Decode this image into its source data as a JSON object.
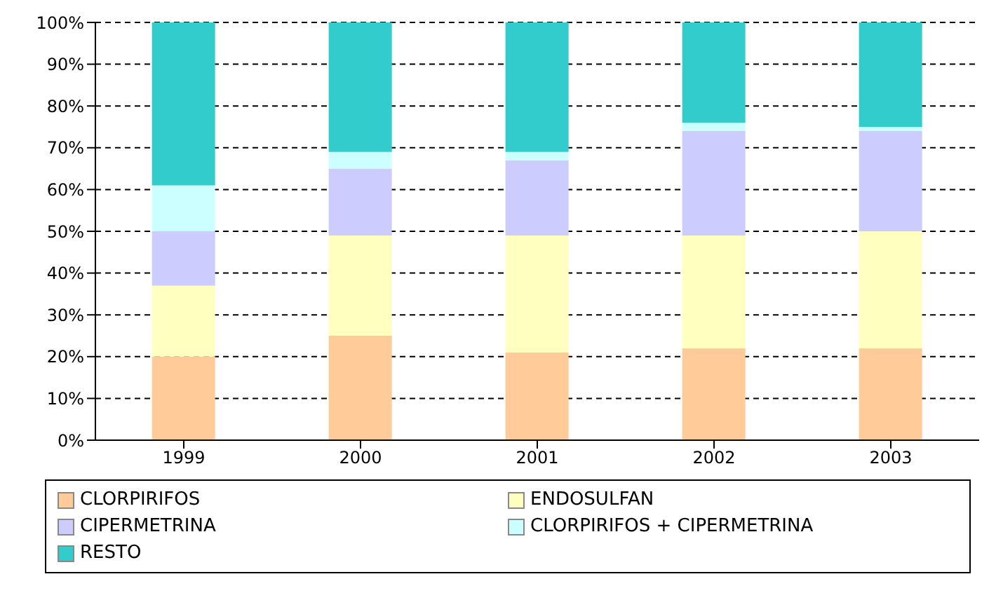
{
  "chart_data": {
    "type": "bar",
    "stacked": true,
    "categories": [
      "1999",
      "2000",
      "2001",
      "2002",
      "2003"
    ],
    "series": [
      {
        "name": "CLORPIRIFOS",
        "color": "#ffcc99",
        "values": [
          20,
          25,
          21,
          22,
          22
        ]
      },
      {
        "name": "ENDOSULFAN",
        "color": "#ffffc0",
        "values": [
          17,
          24,
          28,
          27,
          28
        ]
      },
      {
        "name": "CIPERMETRINA",
        "color": "#ccccff",
        "values": [
          13,
          16,
          18,
          25,
          24
        ]
      },
      {
        "name": "CLORPIRIFOS + CIPERMETRINA",
        "color": "#ccffff",
        "values": [
          11,
          4,
          2,
          2,
          1
        ]
      },
      {
        "name": "RESTO",
        "color": "#33cccc",
        "values": [
          39,
          31,
          31,
          24,
          25
        ]
      }
    ],
    "ylim": [
      0,
      100
    ],
    "yticks": [
      {
        "value": 0,
        "label": "0%"
      },
      {
        "value": 10,
        "label": "10%"
      },
      {
        "value": 20,
        "label": "20%"
      },
      {
        "value": 30,
        "label": "30%"
      },
      {
        "value": 40,
        "label": "40%"
      },
      {
        "value": 50,
        "label": "50%"
      },
      {
        "value": 60,
        "label": "60%"
      },
      {
        "value": 70,
        "label": "70%"
      },
      {
        "value": 80,
        "label": "80%"
      },
      {
        "value": 90,
        "label": "90%"
      },
      {
        "value": 100,
        "label": "100%"
      }
    ],
    "grid": "y",
    "legend": "bottom"
  }
}
